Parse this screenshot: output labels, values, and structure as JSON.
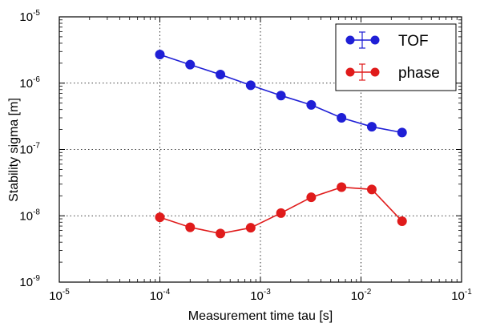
{
  "chart_data": {
    "type": "line",
    "xscale": "log",
    "yscale": "log",
    "xlim": [
      1e-05,
      0.1
    ],
    "ylim": [
      1e-09,
      1e-05
    ],
    "xlabel": "Measurement time tau [s]",
    "ylabel": "Stability sigma [m]",
    "grid": true,
    "legend_position": "top-right",
    "x_ticks": [
      {
        "base": "10",
        "exp": "-5",
        "value": 1e-05
      },
      {
        "base": "10",
        "exp": "-4",
        "value": 0.0001
      },
      {
        "base": "10",
        "exp": "-3",
        "value": 0.001
      },
      {
        "base": "10",
        "exp": "-2",
        "value": 0.01
      },
      {
        "base": "10",
        "exp": "-1",
        "value": 0.1
      }
    ],
    "y_ticks": [
      {
        "base": "10",
        "exp": "-9",
        "value": 1e-09
      },
      {
        "base": "10",
        "exp": "-8",
        "value": 1e-08
      },
      {
        "base": "10",
        "exp": "-7",
        "value": 1e-07
      },
      {
        "base": "10",
        "exp": "-6",
        "value": 1e-06
      },
      {
        "base": "10",
        "exp": "-5",
        "value": 1e-05
      }
    ],
    "series": [
      {
        "name": "TOF",
        "color": "#1f1fd6",
        "x": [
          0.0001,
          0.0002,
          0.0004,
          0.0008,
          0.0016,
          0.0032,
          0.0064,
          0.0128,
          0.0256
        ],
        "y": [
          2.7e-06,
          1.9e-06,
          1.35e-06,
          9.3e-07,
          6.5e-07,
          4.7e-07,
          3e-07,
          2.2e-07,
          1.8e-07
        ]
      },
      {
        "name": "phase",
        "color": "#e01b1b",
        "x": [
          0.0001,
          0.0002,
          0.0004,
          0.0008,
          0.0016,
          0.0032,
          0.0064,
          0.0128,
          0.0256
        ],
        "y": [
          9.5e-09,
          6.7e-09,
          5.4e-09,
          6.6e-09,
          1.1e-08,
          1.9e-08,
          2.7e-08,
          2.5e-08,
          8.3e-09
        ]
      }
    ]
  }
}
